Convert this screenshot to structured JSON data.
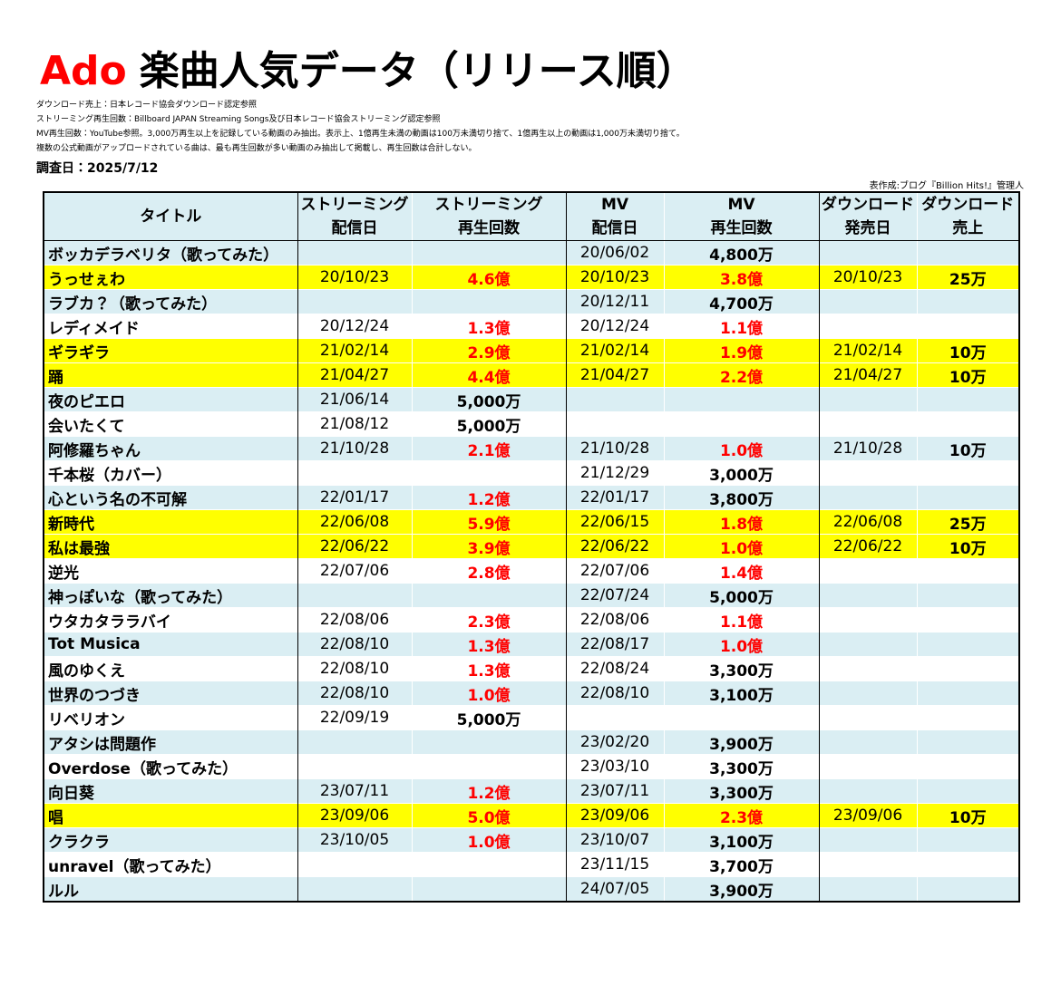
{
  "header": {
    "title_accent": "Ado",
    "title": "楽曲人気データ（リリース順）",
    "notes": [
      "ダウンロード売上：日本レコード協会ダウンロード認定参照",
      "ストリーミング再生回数：Billboard JAPAN Streaming Songs及び日本レコード協会ストリーミング認定参照",
      "MV再生回数：YouTube参照。3,000万再生以上を記録している動画のみ抽出。表示上、1億再生未満の動画は100万未満切り捨て、1億再生以上の動画は1,000万未満切り捨て。",
      "複数の公式動画がアップロードされている曲は、最も再生回数が多い動画のみ抽出して掲載し、再生回数は合計しない。"
    ],
    "survey_date": "調査日：2025/7/12",
    "credit": "表作成:ブログ『Billion Hits!』管理人"
  },
  "table": {
    "columns": [
      [
        "タイトル"
      ],
      [
        "ストリーミング",
        "配信日"
      ],
      [
        "ストリーミング",
        "再生回数"
      ],
      [
        "MV",
        "配信日"
      ],
      [
        "MV",
        "再生回数"
      ],
      [
        "ダウンロード",
        "発売日"
      ],
      [
        "ダウンロード",
        "売上"
      ]
    ],
    "header_color": "#daeef3",
    "stripe_color": "#daeef3",
    "highlight_color": "#ffff00",
    "red_color": "#ff0000",
    "rows": [
      {
        "cells": [
          "ボッカデラベリタ（歌ってみた）",
          null,
          null,
          "20/06/02",
          "4,800万",
          null,
          null
        ],
        "red": []
      },
      {
        "cells": [
          "うっせぇわ",
          "20/10/23",
          "4.6億",
          "20/10/23",
          "3.8億",
          "20/10/23",
          "25万"
        ],
        "red": [
          2,
          4
        ],
        "highlight": true
      },
      {
        "cells": [
          "ラブカ？（歌ってみた）",
          null,
          null,
          "20/12/11",
          "4,700万",
          null,
          null
        ],
        "red": []
      },
      {
        "cells": [
          "レディメイド",
          "20/12/24",
          "1.3億",
          "20/12/24",
          "1.1億",
          null,
          null
        ],
        "red": [
          2,
          4
        ]
      },
      {
        "cells": [
          "ギラギラ",
          "21/02/14",
          "2.9億",
          "21/02/14",
          "1.9億",
          "21/02/14",
          "10万"
        ],
        "red": [
          2,
          4
        ],
        "highlight": true
      },
      {
        "cells": [
          "踊",
          "21/04/27",
          "4.4億",
          "21/04/27",
          "2.2億",
          "21/04/27",
          "10万"
        ],
        "red": [
          2,
          4
        ],
        "highlight": true
      },
      {
        "cells": [
          "夜のピエロ",
          "21/06/14",
          "5,000万",
          null,
          null,
          null,
          null
        ],
        "red": []
      },
      {
        "cells": [
          "会いたくて",
          "21/08/12",
          "5,000万",
          null,
          null,
          null,
          null
        ],
        "red": []
      },
      {
        "cells": [
          "阿修羅ちゃん",
          "21/10/28",
          "2.1億",
          "21/10/28",
          "1.0億",
          "21/10/28",
          "10万"
        ],
        "red": [
          2,
          4
        ]
      },
      {
        "cells": [
          "千本桜（カバー）",
          null,
          null,
          "21/12/29",
          "3,000万",
          null,
          null
        ],
        "red": []
      },
      {
        "cells": [
          "心という名の不可解",
          "22/01/17",
          "1.2億",
          "22/01/17",
          "3,800万",
          null,
          null
        ],
        "red": [
          2
        ]
      },
      {
        "cells": [
          "新時代",
          "22/06/08",
          "5.9億",
          "22/06/15",
          "1.8億",
          "22/06/08",
          "25万"
        ],
        "red": [
          2,
          4
        ],
        "highlight": true
      },
      {
        "cells": [
          "私は最強",
          "22/06/22",
          "3.9億",
          "22/06/22",
          "1.0億",
          "22/06/22",
          "10万"
        ],
        "red": [
          2,
          4
        ],
        "highlight": true
      },
      {
        "cells": [
          "逆光",
          "22/07/06",
          "2.8億",
          "22/07/06",
          "1.4億",
          null,
          null
        ],
        "red": [
          2,
          4
        ]
      },
      {
        "cells": [
          "神っぽいな（歌ってみた）",
          null,
          null,
          "22/07/24",
          "5,000万",
          null,
          null
        ],
        "red": []
      },
      {
        "cells": [
          "ウタカタララバイ",
          "22/08/06",
          "2.3億",
          "22/08/06",
          "1.1億",
          null,
          null
        ],
        "red": [
          2,
          4
        ]
      },
      {
        "cells": [
          "Tot Musica",
          "22/08/10",
          "1.3億",
          "22/08/17",
          "1.0億",
          null,
          null
        ],
        "red": [
          2,
          4
        ]
      },
      {
        "cells": [
          "風のゆくえ",
          "22/08/10",
          "1.3億",
          "22/08/24",
          "3,300万",
          null,
          null
        ],
        "red": [
          2
        ]
      },
      {
        "cells": [
          "世界のつづき",
          "22/08/10",
          "1.0億",
          "22/08/10",
          "3,100万",
          null,
          null
        ],
        "red": [
          2
        ]
      },
      {
        "cells": [
          "リベリオン",
          "22/09/19",
          "5,000万",
          null,
          null,
          null,
          null
        ],
        "red": []
      },
      {
        "cells": [
          "アタシは問題作",
          null,
          null,
          "23/02/20",
          "3,900万",
          null,
          null
        ],
        "red": []
      },
      {
        "cells": [
          "Overdose（歌ってみた）",
          null,
          null,
          "23/03/10",
          "3,300万",
          null,
          null
        ],
        "red": []
      },
      {
        "cells": [
          "向日葵",
          "23/07/11",
          "1.2億",
          "23/07/11",
          "3,300万",
          null,
          null
        ],
        "red": [
          2
        ]
      },
      {
        "cells": [
          "唱",
          "23/09/06",
          "5.0億",
          "23/09/06",
          "2.3億",
          "23/09/06",
          "10万"
        ],
        "red": [
          2,
          4
        ],
        "highlight": true
      },
      {
        "cells": [
          "クラクラ",
          "23/10/05",
          "1.0億",
          "23/10/07",
          "3,100万",
          null,
          null
        ],
        "red": [
          2
        ]
      },
      {
        "cells": [
          "unravel（歌ってみた）",
          null,
          null,
          "23/11/15",
          "3,700万",
          null,
          null
        ],
        "red": []
      },
      {
        "cells": [
          "ルル",
          null,
          null,
          "24/07/05",
          "3,900万",
          null,
          null
        ],
        "red": []
      }
    ]
  }
}
